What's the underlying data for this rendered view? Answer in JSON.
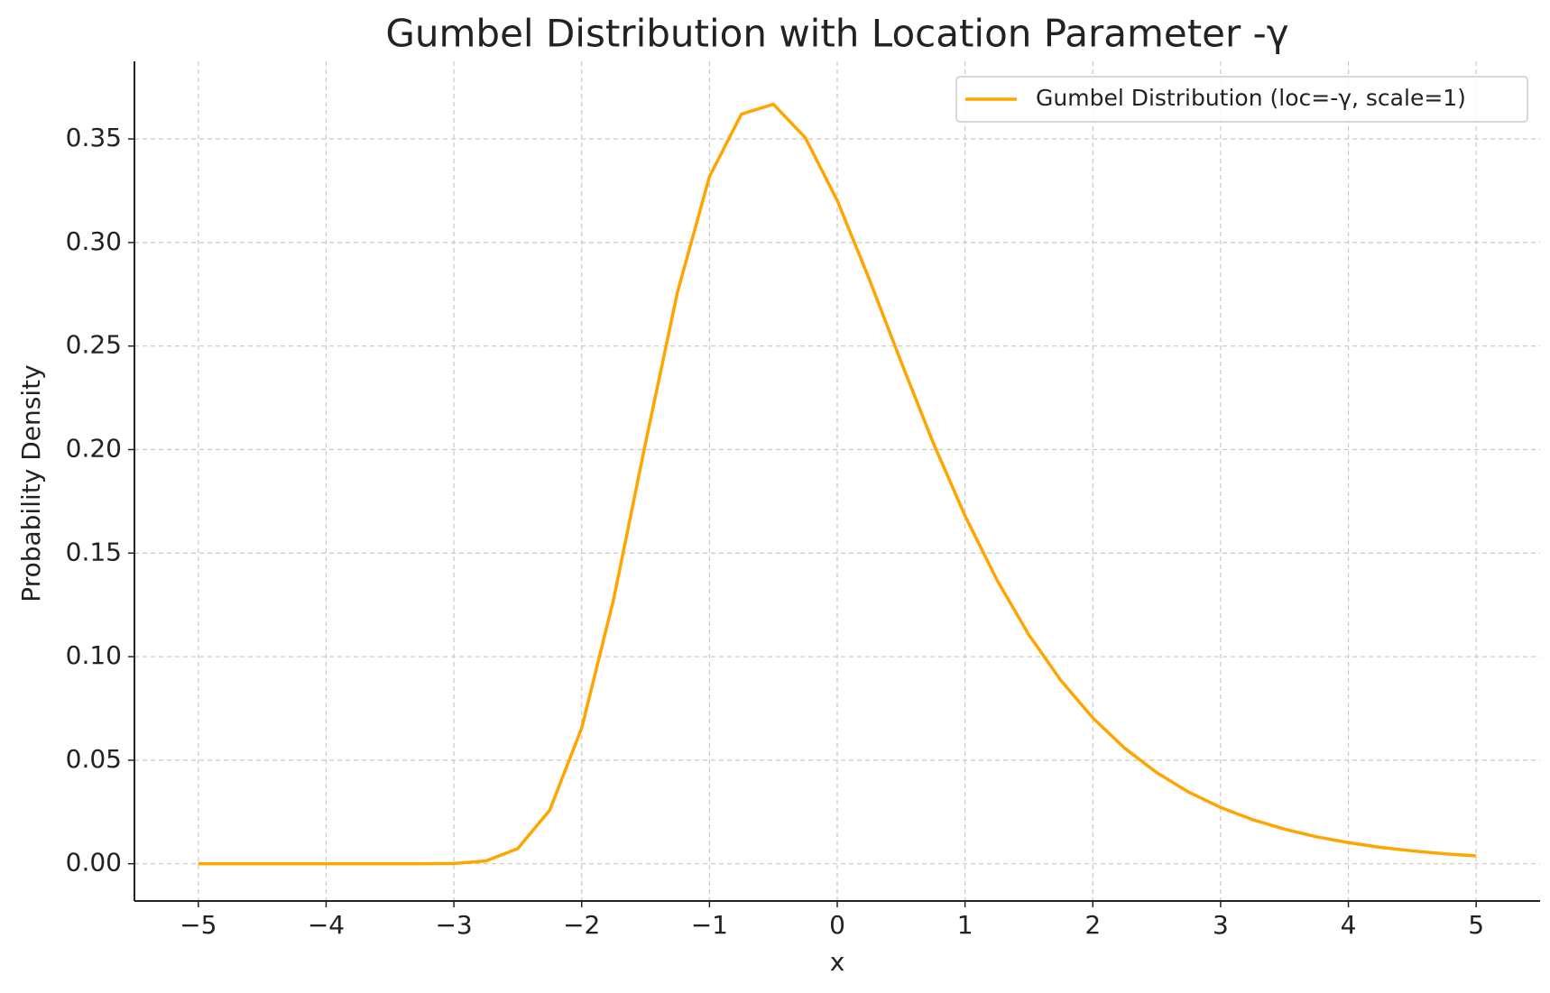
{
  "chart_data": {
    "type": "line",
    "title": "Gumbel Distribution with Location Parameter -γ",
    "xlabel": "x",
    "ylabel": "Probability Density",
    "x": [
      -5,
      -4.75,
      -4.5,
      -4.25,
      -4,
      -3.75,
      -3.5,
      -3.25,
      -3,
      -2.75,
      -2.5,
      -2.25,
      -2,
      -1.75,
      -1.5,
      -1.25,
      -1,
      -0.75,
      -0.5,
      -0.25,
      0,
      0.25,
      0.5,
      0.75,
      1,
      1.25,
      1.5,
      1.75,
      2,
      2.25,
      2.5,
      2.75,
      3,
      3.25,
      3.5,
      3.75,
      4,
      4.25,
      4.5,
      4.75,
      5
    ],
    "series": [
      {
        "name": "Gumbel Distribution (loc=-γ, scale=1)",
        "color": "#ffa500",
        "values": [
          0,
          0,
          0,
          0,
          0,
          0,
          0,
          2e-05,
          0.00014,
          0.00135,
          0.0073,
          0.0259,
          0.0655,
          0.1277,
          0.2033,
          0.2761,
          0.3318,
          0.362,
          0.3668,
          0.3506,
          0.3203,
          0.2824,
          0.2423,
          0.2034,
          0.168,
          0.137,
          0.1105,
          0.0885,
          0.0704,
          0.0558,
          0.044,
          0.0346,
          0.0272,
          0.0213,
          0.0167,
          0.013,
          0.0102,
          0.0079,
          0.0062,
          0.0048,
          0.0038
        ]
      }
    ],
    "xlim": [
      -5.5,
      5.5
    ],
    "xticks": [
      {
        "value": -5,
        "label": "−5"
      },
      {
        "value": -4,
        "label": "−4"
      },
      {
        "value": -3,
        "label": "−3"
      },
      {
        "value": -2,
        "label": "−2"
      },
      {
        "value": -1,
        "label": "−1"
      },
      0,
      1,
      2,
      3,
      4,
      5
    ],
    "ylim": [
      -0.018,
      0.3875
    ],
    "yticks": [
      {
        "value": 0,
        "label": "0.00"
      },
      {
        "value": 0.05,
        "label": "0.05"
      },
      {
        "value": 0.1,
        "label": "0.10"
      },
      {
        "value": 0.15,
        "label": "0.15"
      },
      {
        "value": 0.2,
        "label": "0.20"
      },
      {
        "value": 0.25,
        "label": "0.25"
      },
      {
        "value": 0.3,
        "label": "0.30"
      },
      {
        "value": 0.35,
        "label": "0.35"
      }
    ],
    "grid": true,
    "legend": "upper right"
  }
}
